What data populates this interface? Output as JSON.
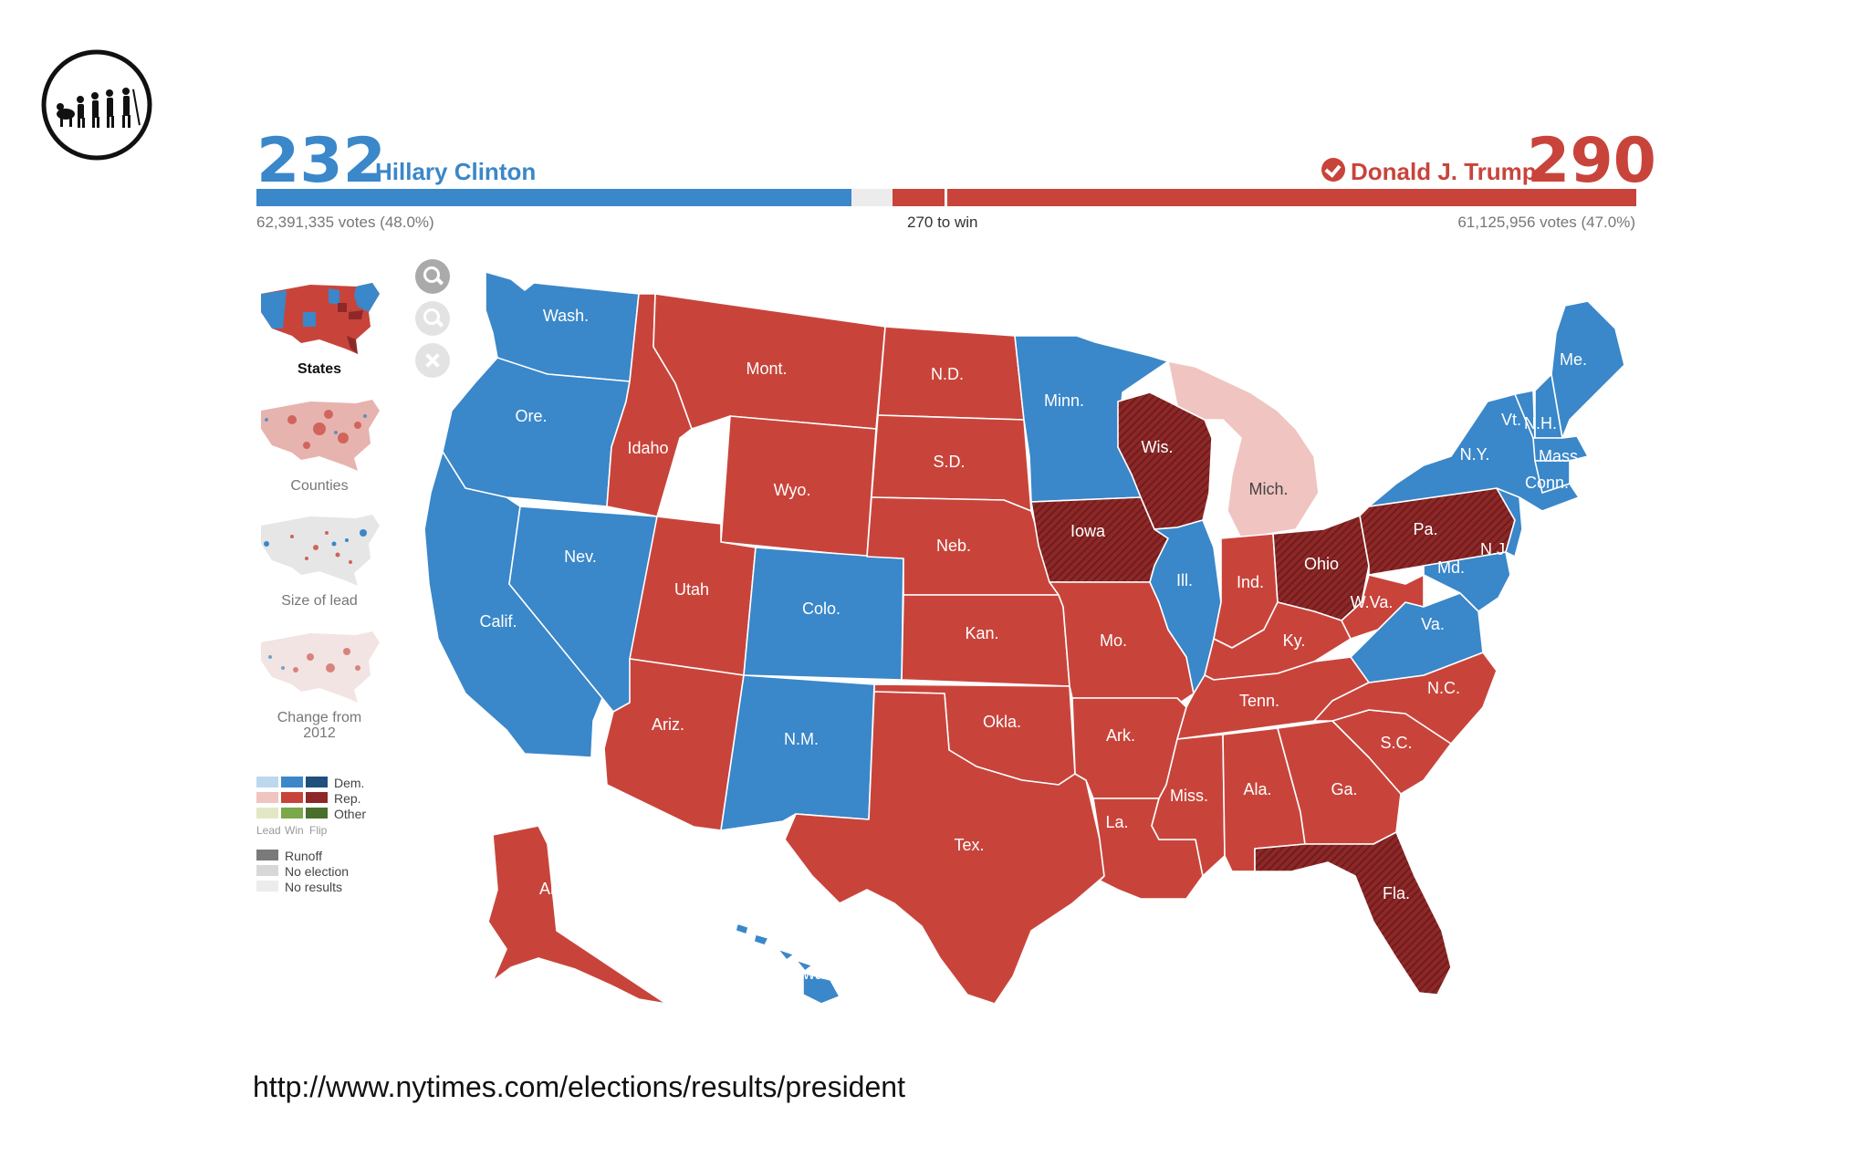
{
  "colors": {
    "dem": "#3a87c9",
    "rep": "#c8443b",
    "rep_flip": "#8e2828",
    "rep_lead": "#f0c4c0"
  },
  "header": {
    "dem_electoral": "232",
    "dem_name": "Hillary Clinton",
    "dem_votes": "62,391,335 votes (48.0%)",
    "rep_electoral": "290",
    "rep_name": "Donald J. Trump",
    "rep_votes": "61,125,956 votes (47.0%)",
    "threshold_label": "270 to win",
    "dem_share_of_538": 0.431,
    "rep_share_of_538": 0.539
  },
  "views": {
    "states": "States",
    "counties": "Counties",
    "size_of_lead": "Size of lead",
    "change_from_2012": "Change from\n2012"
  },
  "legend": {
    "dem": "Dem.",
    "rep": "Rep.",
    "other": "Other",
    "lead": "Lead",
    "win": "Win",
    "flip": "Flip",
    "runoff": "Runoff",
    "no_election": "No election",
    "no_results": "No results"
  },
  "states": {
    "WA": {
      "label": "Wash.",
      "winner": "dem"
    },
    "OR": {
      "label": "Ore.",
      "winner": "dem"
    },
    "CA": {
      "label": "Calif.",
      "winner": "dem"
    },
    "NV": {
      "label": "Nev.",
      "winner": "dem"
    },
    "ID": {
      "label": "Idaho",
      "winner": "rep"
    },
    "MT": {
      "label": "Mont.",
      "winner": "rep"
    },
    "WY": {
      "label": "Wyo.",
      "winner": "rep"
    },
    "UT": {
      "label": "Utah",
      "winner": "rep"
    },
    "AZ": {
      "label": "Ariz.",
      "winner": "rep"
    },
    "CO": {
      "label": "Colo.",
      "winner": "dem"
    },
    "NM": {
      "label": "N.M.",
      "winner": "dem"
    },
    "ND": {
      "label": "N.D.",
      "winner": "rep"
    },
    "SD": {
      "label": "S.D.",
      "winner": "rep"
    },
    "NE": {
      "label": "Neb.",
      "winner": "rep"
    },
    "KS": {
      "label": "Kan.",
      "winner": "rep"
    },
    "OK": {
      "label": "Okla.",
      "winner": "rep"
    },
    "TX": {
      "label": "Tex.",
      "winner": "rep"
    },
    "MN": {
      "label": "Minn.",
      "winner": "dem"
    },
    "IA": {
      "label": "Iowa",
      "winner": "rep_flip"
    },
    "MO": {
      "label": "Mo.",
      "winner": "rep"
    },
    "AR": {
      "label": "Ark.",
      "winner": "rep"
    },
    "LA": {
      "label": "La.",
      "winner": "rep"
    },
    "WI": {
      "label": "Wis.",
      "winner": "rep_flip"
    },
    "IL": {
      "label": "Ill.",
      "winner": "dem"
    },
    "MI": {
      "label": "Mich.",
      "winner": "rep_lead"
    },
    "IN": {
      "label": "Ind.",
      "winner": "rep"
    },
    "OH": {
      "label": "Ohio",
      "winner": "rep_flip"
    },
    "KY": {
      "label": "Ky.",
      "winner": "rep"
    },
    "TN": {
      "label": "Tenn.",
      "winner": "rep"
    },
    "MS": {
      "label": "Miss.",
      "winner": "rep"
    },
    "AL": {
      "label": "Ala.",
      "winner": "rep"
    },
    "GA": {
      "label": "Ga.",
      "winner": "rep"
    },
    "FL": {
      "label": "Fla.",
      "winner": "rep_flip"
    },
    "SC": {
      "label": "S.C.",
      "winner": "rep"
    },
    "NC": {
      "label": "N.C.",
      "winner": "rep"
    },
    "VA": {
      "label": "Va.",
      "winner": "dem"
    },
    "WV": {
      "label": "W.Va.",
      "winner": "rep"
    },
    "PA": {
      "label": "Pa.",
      "winner": "rep_flip"
    },
    "MD": {
      "label": "Md.",
      "winner": "dem"
    },
    "NJ": {
      "label": "N.J.",
      "winner": "dem"
    },
    "NY": {
      "label": "N.Y.",
      "winner": "dem"
    },
    "VT": {
      "label": "Vt.",
      "winner": "dem"
    },
    "NH": {
      "label": "N.H.",
      "winner": "dem"
    },
    "MA": {
      "label": "Mass.",
      "winner": "dem"
    },
    "CT": {
      "label": "Conn.",
      "winner": "dem"
    },
    "ME": {
      "label": "Me.",
      "winner": "dem"
    },
    "AK": {
      "label": "Alaska",
      "winner": "rep"
    },
    "HI": {
      "label": "Hawaii",
      "winner": "dem"
    }
  },
  "source_url": "http://www.nytimes.com/elections/results/president"
}
